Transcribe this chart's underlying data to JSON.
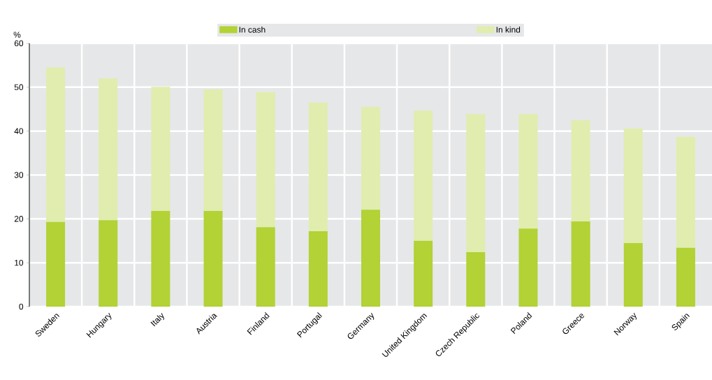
{
  "chart_data": {
    "type": "bar",
    "stacked": true,
    "ylabel": "%",
    "categories": [
      "Sweden",
      "Hungary",
      "Italy",
      "Austria",
      "Finland",
      "Portugal",
      "Germany",
      "United Kingdom",
      "Czech Republic",
      "Poland",
      "Greece",
      "Norway",
      "Spain"
    ],
    "series": [
      {
        "name": "In cash",
        "color": "#b2d235",
        "values": [
          19.3,
          19.7,
          21.8,
          21.8,
          18.1,
          17.2,
          22.1,
          15.0,
          12.4,
          17.8,
          19.4,
          14.5,
          13.4
        ]
      },
      {
        "name": "In kind",
        "color": "#e0edae",
        "values": [
          35.2,
          32.3,
          28.3,
          27.7,
          30.8,
          29.3,
          23.4,
          29.7,
          31.5,
          26.1,
          23.1,
          26.1,
          25.3
        ]
      }
    ],
    "ylim": [
      0,
      60
    ],
    "yticks": [
      0,
      10,
      20,
      30,
      40,
      50,
      60
    ],
    "grid": true,
    "legend": "top"
  }
}
